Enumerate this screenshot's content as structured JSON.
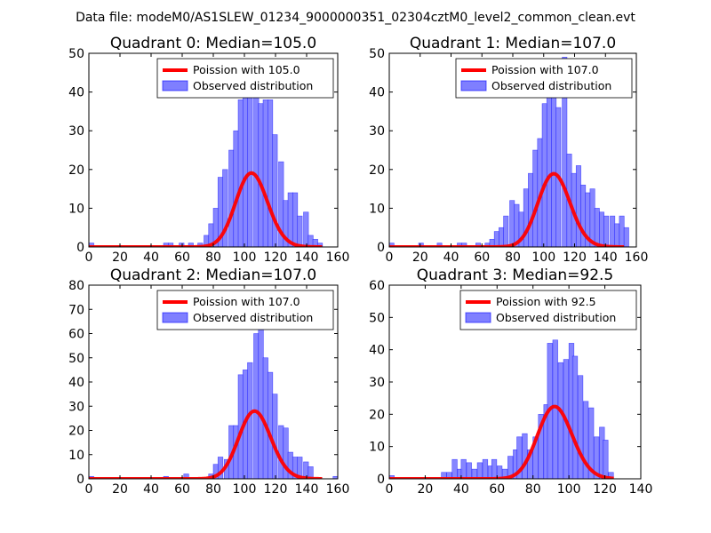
{
  "suptitle": "Data file: modeM0/AS1SLEW_01234_9000000351_02304cztM0_level2_common_clean.evt",
  "colors": {
    "hist_fill": "#7f7fff",
    "hist_edge": "#0000ff",
    "poisson": "#ff0000",
    "axes": "#000000"
  },
  "chart_data": [
    {
      "type": "bar",
      "title": "Quadrant 0: Median=105.0",
      "median": 105.0,
      "bin_width": 3.2,
      "xlim": [
        0,
        160
      ],
      "ylim": [
        0,
        50
      ],
      "xticks": [
        0,
        20,
        40,
        60,
        80,
        100,
        120,
        140,
        160
      ],
      "yticks": [
        0,
        10,
        20,
        30,
        40,
        50
      ],
      "legend": {
        "line_label": "Poission with 105.0",
        "bar_label": "Observed distribution",
        "loc": "upper right"
      },
      "poisson": {
        "mean": 105.0,
        "n_total": 490,
        "x_max": 150
      },
      "bins": [
        {
          "x": 0,
          "count": 1
        },
        {
          "x": 48,
          "count": 1
        },
        {
          "x": 51,
          "count": 1
        },
        {
          "x": 58,
          "count": 1
        },
        {
          "x": 64,
          "count": 1
        },
        {
          "x": 70,
          "count": 1
        },
        {
          "x": 74,
          "count": 3
        },
        {
          "x": 77,
          "count": 6
        },
        {
          "x": 80,
          "count": 10
        },
        {
          "x": 83,
          "count": 18
        },
        {
          "x": 86,
          "count": 20
        },
        {
          "x": 90,
          "count": 25
        },
        {
          "x": 93,
          "count": 30
        },
        {
          "x": 96,
          "count": 38
        },
        {
          "x": 99,
          "count": 44
        },
        {
          "x": 102,
          "count": 40
        },
        {
          "x": 106,
          "count": 41
        },
        {
          "x": 109,
          "count": 37
        },
        {
          "x": 112,
          "count": 38
        },
        {
          "x": 115,
          "count": 38
        },
        {
          "x": 118,
          "count": 29
        },
        {
          "x": 122,
          "count": 22
        },
        {
          "x": 125,
          "count": 12
        },
        {
          "x": 128,
          "count": 14
        },
        {
          "x": 131,
          "count": 14
        },
        {
          "x": 134,
          "count": 8
        },
        {
          "x": 138,
          "count": 9
        },
        {
          "x": 141,
          "count": 3
        },
        {
          "x": 144,
          "count": 2
        },
        {
          "x": 147,
          "count": 1
        }
      ]
    },
    {
      "type": "bar",
      "title": "Quadrant 1: Median=107.0",
      "median": 107.0,
      "bin_width": 3.1,
      "xlim": [
        0,
        160
      ],
      "ylim": [
        0,
        50
      ],
      "xticks": [
        0,
        20,
        40,
        60,
        80,
        100,
        120,
        140,
        160
      ],
      "yticks": [
        0,
        10,
        20,
        30,
        40,
        50
      ],
      "legend": {
        "line_label": "Poission with 107.0",
        "bar_label": "Observed distribution",
        "loc": "upper right"
      },
      "poisson": {
        "mean": 107.0,
        "n_total": 490,
        "x_max": 152
      },
      "bins": [
        {
          "x": 0,
          "count": 1
        },
        {
          "x": 19,
          "count": 1
        },
        {
          "x": 31,
          "count": 1
        },
        {
          "x": 44,
          "count": 1
        },
        {
          "x": 47,
          "count": 1
        },
        {
          "x": 56,
          "count": 1
        },
        {
          "x": 62,
          "count": 1
        },
        {
          "x": 65,
          "count": 2
        },
        {
          "x": 68,
          "count": 4
        },
        {
          "x": 71,
          "count": 5
        },
        {
          "x": 74,
          "count": 8
        },
        {
          "x": 78,
          "count": 12
        },
        {
          "x": 81,
          "count": 11
        },
        {
          "x": 84,
          "count": 9
        },
        {
          "x": 87,
          "count": 15
        },
        {
          "x": 90,
          "count": 19
        },
        {
          "x": 93,
          "count": 25
        },
        {
          "x": 96,
          "count": 28
        },
        {
          "x": 99,
          "count": 37
        },
        {
          "x": 102,
          "count": 42
        },
        {
          "x": 105,
          "count": 40
        },
        {
          "x": 108,
          "count": 36
        },
        {
          "x": 112,
          "count": 49
        },
        {
          "x": 115,
          "count": 24
        },
        {
          "x": 118,
          "count": 19
        },
        {
          "x": 121,
          "count": 21
        },
        {
          "x": 124,
          "count": 16
        },
        {
          "x": 127,
          "count": 14
        },
        {
          "x": 130,
          "count": 15
        },
        {
          "x": 133,
          "count": 10
        },
        {
          "x": 136,
          "count": 9
        },
        {
          "x": 139,
          "count": 8
        },
        {
          "x": 143,
          "count": 8
        },
        {
          "x": 146,
          "count": 6
        },
        {
          "x": 149,
          "count": 8
        },
        {
          "x": 152,
          "count": 5
        }
      ]
    },
    {
      "type": "bar",
      "title": "Quadrant 2: Median=107.0",
      "median": 107.0,
      "bin_width": 3.2,
      "xlim": [
        0,
        160
      ],
      "ylim": [
        0,
        80
      ],
      "xticks": [
        0,
        20,
        40,
        60,
        80,
        100,
        120,
        140,
        160
      ],
      "yticks": [
        0,
        10,
        20,
        30,
        40,
        50,
        60,
        70,
        80
      ],
      "legend": {
        "line_label": "Poission with 107.0",
        "bar_label": "Observed distribution",
        "loc": "upper right"
      },
      "poisson": {
        "mean": 107.0,
        "n_total": 725,
        "x_max": 150
      },
      "bins": [
        {
          "x": 0,
          "count": 1
        },
        {
          "x": 48,
          "count": 1
        },
        {
          "x": 61,
          "count": 2
        },
        {
          "x": 77,
          "count": 2
        },
        {
          "x": 80,
          "count": 6
        },
        {
          "x": 83,
          "count": 9
        },
        {
          "x": 87,
          "count": 8
        },
        {
          "x": 90,
          "count": 22
        },
        {
          "x": 93,
          "count": 22
        },
        {
          "x": 96,
          "count": 43
        },
        {
          "x": 99,
          "count": 45
        },
        {
          "x": 102,
          "count": 48
        },
        {
          "x": 106,
          "count": 60
        },
        {
          "x": 109,
          "count": 72
        },
        {
          "x": 112,
          "count": 50
        },
        {
          "x": 115,
          "count": 44
        },
        {
          "x": 118,
          "count": 35
        },
        {
          "x": 122,
          "count": 22
        },
        {
          "x": 125,
          "count": 21
        },
        {
          "x": 128,
          "count": 11
        },
        {
          "x": 131,
          "count": 9
        },
        {
          "x": 134,
          "count": 9
        },
        {
          "x": 138,
          "count": 7
        },
        {
          "x": 141,
          "count": 5
        },
        {
          "x": 157,
          "count": 1
        }
      ]
    },
    {
      "type": "bar",
      "title": "Quadrant 3: Median=92.5",
      "median": 92.5,
      "bin_width": 2.8,
      "xlim": [
        0,
        140
      ],
      "ylim": [
        0,
        60
      ],
      "xticks": [
        0,
        20,
        40,
        60,
        80,
        100,
        120,
        140
      ],
      "yticks": [
        0,
        10,
        20,
        30,
        40,
        50,
        60
      ],
      "legend": {
        "line_label": "Poission with 92.5",
        "bar_label": "Observed distribution",
        "loc": "upper right"
      },
      "poisson": {
        "mean": 92.5,
        "n_total": 540,
        "x_max": 125
      },
      "bins": [
        {
          "x": 0,
          "count": 1
        },
        {
          "x": 29,
          "count": 2
        },
        {
          "x": 32,
          "count": 2
        },
        {
          "x": 35,
          "count": 6
        },
        {
          "x": 38,
          "count": 3
        },
        {
          "x": 40,
          "count": 6
        },
        {
          "x": 43,
          "count": 5
        },
        {
          "x": 46,
          "count": 3
        },
        {
          "x": 49,
          "count": 5
        },
        {
          "x": 52,
          "count": 6
        },
        {
          "x": 55,
          "count": 4
        },
        {
          "x": 57,
          "count": 6
        },
        {
          "x": 60,
          "count": 4
        },
        {
          "x": 63,
          "count": 3
        },
        {
          "x": 66,
          "count": 7
        },
        {
          "x": 69,
          "count": 9
        },
        {
          "x": 71,
          "count": 13
        },
        {
          "x": 74,
          "count": 14
        },
        {
          "x": 77,
          "count": 9
        },
        {
          "x": 80,
          "count": 13
        },
        {
          "x": 83,
          "count": 20
        },
        {
          "x": 86,
          "count": 23
        },
        {
          "x": 88,
          "count": 42
        },
        {
          "x": 91,
          "count": 43
        },
        {
          "x": 94,
          "count": 36
        },
        {
          "x": 97,
          "count": 37
        },
        {
          "x": 100,
          "count": 42
        },
        {
          "x": 102,
          "count": 38
        },
        {
          "x": 105,
          "count": 32
        },
        {
          "x": 108,
          "count": 24
        },
        {
          "x": 111,
          "count": 22
        },
        {
          "x": 114,
          "count": 13
        },
        {
          "x": 117,
          "count": 16
        },
        {
          "x": 119,
          "count": 12
        },
        {
          "x": 122,
          "count": 2
        }
      ]
    }
  ]
}
